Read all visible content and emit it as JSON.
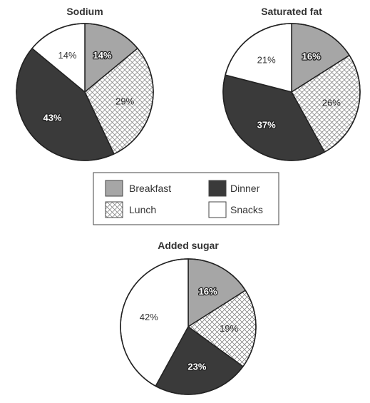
{
  "chart_data": [
    {
      "type": "pie",
      "title": "Sodium",
      "categories": [
        "Breakfast",
        "Lunch",
        "Dinner",
        "Snacks"
      ],
      "values": [
        14,
        29,
        43,
        14
      ],
      "labels": [
        "14%",
        "29%",
        "43%",
        "14%"
      ]
    },
    {
      "type": "pie",
      "title": "Saturated fat",
      "categories": [
        "Breakfast",
        "Lunch",
        "Dinner",
        "Snacks"
      ],
      "values": [
        16,
        26,
        37,
        21
      ],
      "labels": [
        "16%",
        "26%",
        "37%",
        "21%"
      ]
    },
    {
      "type": "pie",
      "title": "Added sugar",
      "categories": [
        "Breakfast",
        "Lunch",
        "Dinner",
        "Snacks"
      ],
      "values": [
        16,
        19,
        23,
        42
      ],
      "labels": [
        "16%",
        "19%",
        "23%",
        "42%"
      ]
    }
  ],
  "legend": {
    "placement": "center",
    "items": [
      {
        "name": "Breakfast",
        "fill": "breakfast"
      },
      {
        "name": "Dinner",
        "fill": "dinner"
      },
      {
        "name": "Lunch",
        "fill": "lunch"
      },
      {
        "name": "Snacks",
        "fill": "snacks"
      }
    ]
  },
  "colors": {
    "breakfast": "#a6a6a6",
    "lunch": "#ffffff",
    "lunch_hatch": "#8a8a8a",
    "dinner": "#3a3a3a",
    "snacks": "#ffffff",
    "outline": "#222222"
  }
}
